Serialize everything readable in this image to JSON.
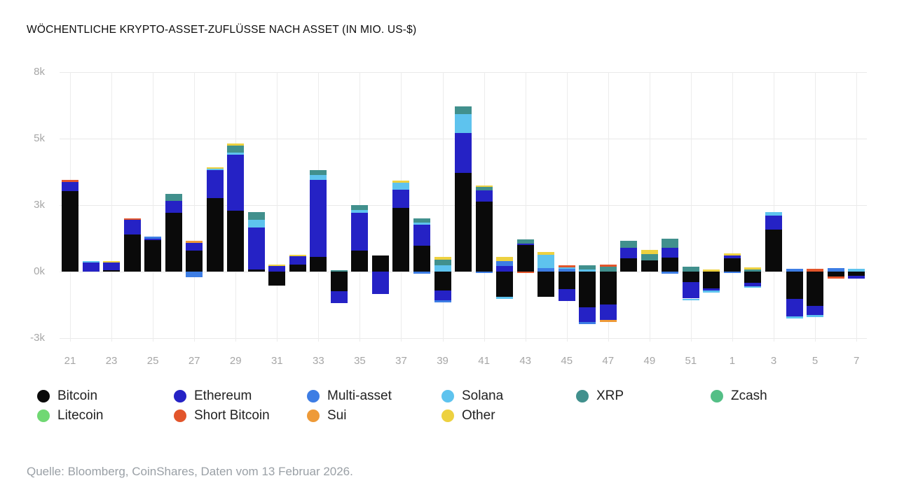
{
  "title": "WÖCHENTLICHE KRYPTO-ASSET-ZUFLÜSSE NACH ASSET (IN MIO. US-$)",
  "source": "Quelle: Bloomberg, CoinShares, Daten vom 13 Februar 2026.",
  "legend": {
    "rows": [
      [
        "Bitcoin",
        "Ethereum",
        "Multi-asset",
        "Solana",
        "XRP",
        "Zcash"
      ],
      [
        "Litecoin",
        "Short Bitcoin",
        "Sui",
        "Other"
      ]
    ]
  },
  "chart_data": {
    "type": "bar",
    "variant": "stacked-bar-weekly",
    "title": "WÖCHENTLICHE KRYPTO-ASSET-ZUFLÜSSE NACH ASSET (IN MIO. US-$)",
    "unit": "Mio. US-$",
    "grid": "on",
    "legend_position": "bottom",
    "y_tick_labels": [
      "8k",
      "5k",
      "3k",
      "0k",
      "-3k"
    ],
    "y_tick_values": [
      7920,
      5280,
      2640,
      0,
      -2640
    ],
    "ylim": [
      -3100,
      8450
    ],
    "x_axis_note": "Kalenderwochen 21-52, dann 1-7",
    "series_order": [
      "Bitcoin",
      "Ethereum",
      "Multi-asset",
      "Solana",
      "XRP",
      "Zcash",
      "Litecoin",
      "Short Bitcoin",
      "Sui",
      "Other"
    ],
    "series_colors": {
      "Bitcoin": "#0a0a0a",
      "Ethereum": "#2522c5",
      "Multi-asset": "#3d7de4",
      "Solana": "#5ec3ee",
      "XRP": "#41908d",
      "Zcash": "#54bf86",
      "Litecoin": "#70d873",
      "Short Bitcoin": "#e2552b",
      "Sui": "#ee9a38",
      "Other": "#edd140"
    },
    "weeks": [
      {
        "week": "21",
        "show_label": true,
        "values": {
          "Bitcoin": 3200,
          "Ethereum": 360,
          "Short Bitcoin": 80
        }
      },
      {
        "week": "22",
        "show_label": false,
        "values": {
          "Ethereum": 370,
          "Solana": 60
        }
      },
      {
        "week": "23",
        "show_label": true,
        "values": {
          "Bitcoin": 60,
          "Ethereum": 300,
          "Other": 60
        }
      },
      {
        "week": "24",
        "show_label": false,
        "values": {
          "Bitcoin": 1480,
          "Ethereum": 580,
          "Short Bitcoin": 60
        }
      },
      {
        "week": "25",
        "show_label": true,
        "values": {
          "Bitcoin": 1250,
          "Ethereum": 60,
          "Multi-asset": 80
        }
      },
      {
        "week": "26",
        "show_label": false,
        "values": {
          "Bitcoin": 2340,
          "Ethereum": 470,
          "XRP": 280
        }
      },
      {
        "week": "27",
        "show_label": true,
        "values": {
          "Bitcoin": 830,
          "Ethereum": 310,
          "Sui": 80,
          "Multi-asset": -230
        }
      },
      {
        "week": "28",
        "show_label": false,
        "values": {
          "Bitcoin": 2930,
          "Ethereum": 1090,
          "Solana": 70,
          "Other": 60
        }
      },
      {
        "week": "29",
        "show_label": true,
        "values": {
          "Bitcoin": 2410,
          "Ethereum": 2220,
          "Solana": 90,
          "XRP": 280,
          "Other": 90
        }
      },
      {
        "week": "30",
        "show_label": false,
        "values": {
          "Bitcoin": 70,
          "Ethereum": 1670,
          "Solana": 310,
          "XRP": 300
        }
      },
      {
        "week": "31",
        "show_label": true,
        "values": {
          "Ethereum": 220,
          "Other": 60,
          "Bitcoin": -560
        }
      },
      {
        "week": "32",
        "show_label": false,
        "values": {
          "Bitcoin": 280,
          "Ethereum": 330,
          "Other": 60
        }
      },
      {
        "week": "33",
        "show_label": true,
        "values": {
          "Bitcoin": 590,
          "Ethereum": 3050,
          "Solana": 190,
          "XRP": 190
        }
      },
      {
        "week": "34",
        "show_label": false,
        "values": {
          "XRP": 60,
          "Bitcoin": -780,
          "Ethereum": -470
        }
      },
      {
        "week": "35",
        "show_label": true,
        "values": {
          "Bitcoin": 830,
          "Ethereum": 1500,
          "Solana": 120,
          "XRP": 190
        }
      },
      {
        "week": "36",
        "show_label": false,
        "values": {
          "Bitcoin": 630,
          "Ethereum": -880
        }
      },
      {
        "week": "37",
        "show_label": true,
        "values": {
          "Bitcoin": 2530,
          "Ethereum": 720,
          "Solana": 280,
          "Other": 80
        }
      },
      {
        "week": "38",
        "show_label": false,
        "values": {
          "Bitcoin": 1040,
          "Ethereum": 830,
          "Solana": 80,
          "XRP": 150,
          "Multi-asset": -80
        }
      },
      {
        "week": "39",
        "show_label": true,
        "values": {
          "Solana": 250,
          "XRP": 230,
          "Other": 100,
          "Bitcoin": -750,
          "Ethereum": -390,
          "Multi-asset": -80
        }
      },
      {
        "week": "40",
        "show_label": false,
        "values": {
          "Bitcoin": 3920,
          "Ethereum": 1580,
          "Solana": 750,
          "XRP": 310
        }
      },
      {
        "week": "41",
        "show_label": true,
        "values": {
          "Bitcoin": 2780,
          "Ethereum": 440,
          "XRP": 130,
          "Other": 80,
          "Multi-asset": -60
        }
      },
      {
        "week": "42",
        "show_label": false,
        "values": {
          "Ethereum": 220,
          "Multi-asset": 190,
          "Other": 170,
          "Bitcoin": -990,
          "Solana": -80
        }
      },
      {
        "week": "43",
        "show_label": true,
        "values": {
          "Bitcoin": 1050,
          "Ethereum": 60,
          "XRP": 160,
          "Short Bitcoin": -60
        }
      },
      {
        "week": "44",
        "show_label": false,
        "values": {
          "Multi-asset": 150,
          "Solana": 530,
          "Other": 90,
          "Bitcoin": -990
        }
      },
      {
        "week": "45",
        "show_label": true,
        "values": {
          "Multi-asset": 100,
          "Solana": 60,
          "Short Bitcoin": 100,
          "Bitcoin": -690,
          "Ethereum": -470
        }
      },
      {
        "week": "46",
        "show_label": false,
        "values": {
          "XRP": 170,
          "Solana": 80,
          "Bitcoin": -1420,
          "Ethereum": -580,
          "Multi-asset": -80
        }
      },
      {
        "week": "47",
        "show_label": true,
        "values": {
          "Short Bitcoin": 80,
          "XRP": 190,
          "Bitcoin": -1310,
          "Ethereum": -620,
          "Sui": -80
        }
      },
      {
        "week": "48",
        "show_label": false,
        "values": {
          "Bitcoin": 530,
          "Ethereum": 420,
          "XRP": 280
        }
      },
      {
        "week": "49",
        "show_label": true,
        "values": {
          "Bitcoin": 440,
          "XRP": 250,
          "Other": 160
        }
      },
      {
        "week": "50",
        "show_label": false,
        "values": {
          "Bitcoin": 560,
          "Ethereum": 390,
          "XRP": 350,
          "Multi-asset": -80
        }
      },
      {
        "week": "51",
        "show_label": true,
        "values": {
          "XRP": 190,
          "Bitcoin": -420,
          "Ethereum": -650,
          "Solana": -80
        }
      },
      {
        "week": "52",
        "show_label": false,
        "values": {
          "Other": 80,
          "Bitcoin": -670,
          "Ethereum": -90,
          "Solana": -60
        }
      },
      {
        "week": "1",
        "show_label": true,
        "values": {
          "Bitcoin": 530,
          "Ethereum": 100,
          "Other": 80,
          "Multi-asset": -60
        }
      },
      {
        "week": "2",
        "show_label": false,
        "values": {
          "Other": 80,
          "XRP": 90,
          "Bitcoin": -450,
          "Ethereum": -130,
          "Solana": -60
        }
      },
      {
        "week": "3",
        "show_label": true,
        "values": {
          "Bitcoin": 1670,
          "Ethereum": 560,
          "Solana": 130
        }
      },
      {
        "week": "4",
        "show_label": false,
        "values": {
          "Multi-asset": 100,
          "Bitcoin": -1080,
          "Ethereum": -690,
          "Solana": -80
        }
      },
      {
        "week": "5",
        "show_label": true,
        "values": {
          "Short Bitcoin": 100,
          "Bitcoin": -1360,
          "Ethereum": -360,
          "Solana": -80
        }
      },
      {
        "week": "6",
        "show_label": false,
        "values": {
          "Multi-asset": 130,
          "Bitcoin": -200,
          "Short Bitcoin": -80
        }
      },
      {
        "week": "7",
        "show_label": true,
        "values": {
          "Solana": 110,
          "Bitcoin": -170,
          "Ethereum": -110
        }
      }
    ]
  }
}
